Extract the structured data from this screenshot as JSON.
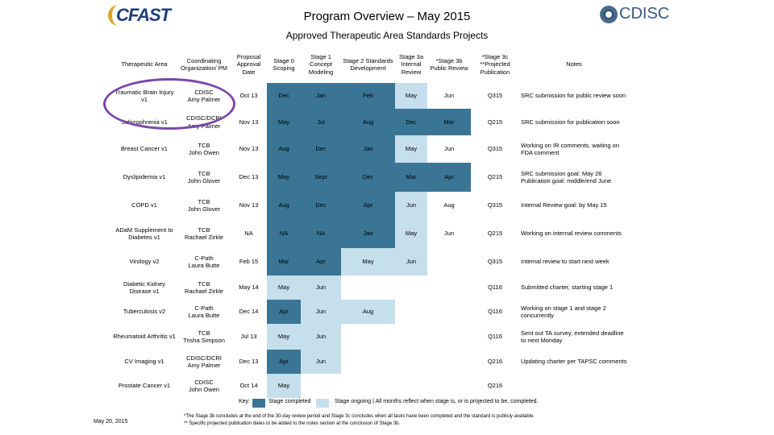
{
  "header": {
    "title": "Program Overview – May 2015",
    "subtitle": "Approved Therapeutic Area Standards Projects",
    "logo_left": "CFAST",
    "logo_right": "CDISC"
  },
  "colors": {
    "dark": "#3a7595",
    "light": "#c5dfec",
    "circle": "#7b47a8"
  },
  "table": {
    "columns": [
      "Therapeutic Area",
      "Coordinating Organization/ PM",
      "Proposal Approval Date",
      "Stage 0 Scoping",
      "Stage 1 Concept Modeling",
      "Stage 2 Standards Development",
      "Stage 3a Internal Review",
      "*Stage 3b Public Review",
      "*Stage 3c **Projected Publication",
      "Notes"
    ],
    "rows": [
      {
        "ta": "Traumatic Brain Injury v1",
        "org": "CDISC",
        "pm": "Amy Palmer",
        "date": "Oct 13",
        "s0": "Dec",
        "s1": "Jan",
        "s2": "Feb",
        "s3a": "May",
        "s3b": "Jun",
        "s3c": "Q315",
        "notes": "SRC submission for public review soon",
        "c": [
          "dk",
          "dk",
          "dk",
          "lg",
          "",
          ""
        ]
      },
      {
        "ta": "Schizophrenia v1",
        "org": "CDISC/DCRI",
        "pm": "Amy Palmer",
        "date": "Nov 13",
        "s0": "May",
        "s1": "Jul",
        "s2": "Aug",
        "s3a": "Dec",
        "s3b": "Mar",
        "s3c": "Q215",
        "notes": "SRC submission for publication soon",
        "c": [
          "dk",
          "dk",
          "dk",
          "dk",
          "dk",
          ""
        ]
      },
      {
        "ta": "Breast Cancer v1",
        "org": "TCB",
        "pm": "John Owen",
        "date": "Nov 13",
        "s0": "Aug",
        "s1": "Dec",
        "s2": "Jan",
        "s3a": "May",
        "s3b": "Jun",
        "s3c": "Q315",
        "notes": "Working on IR comments, waiting on FDA comment",
        "c": [
          "dk",
          "dk",
          "dk",
          "lg",
          "",
          ""
        ]
      },
      {
        "ta": "Dyslipidemia v1",
        "org": "TCB",
        "pm": "John Glover",
        "date": "Dec 13",
        "s0": "May",
        "s1": "Sept",
        "s2": "Dec",
        "s3a": "Mar",
        "s3b": "Apr",
        "s3c": "Q215",
        "notes": "SRC submission goal: May 26 Publication goal: middle/end June",
        "c": [
          "dk",
          "dk",
          "dk",
          "dk",
          "dk",
          ""
        ]
      },
      {
        "ta": "COPD v1",
        "org": "TCB",
        "pm": "John Glover",
        "date": "Nov 13",
        "s0": "Aug",
        "s1": "Dec",
        "s2": "Apr",
        "s3a": "Jun",
        "s3b": "Aug",
        "s3c": "Q315",
        "notes": "Internal Review goal: by May 15",
        "c": [
          "dk",
          "dk",
          "dk",
          "lg",
          "",
          ""
        ]
      },
      {
        "ta": "ADaM Supplement to Diabetes v1",
        "org": "TCB",
        "pm": "Rachael Zirkle",
        "date": "NA",
        "s0": "NA",
        "s1": "NA",
        "s2": "Jan",
        "s3a": "May",
        "s3b": "Jun",
        "s3c": "Q215",
        "notes": "Working on internal review comments",
        "c": [
          "dk",
          "dk",
          "dk",
          "lg",
          "",
          ""
        ]
      },
      {
        "ta": "Virology v2",
        "org": "C-Path",
        "pm": "Laura Butte",
        "date": "Feb 15",
        "s0": "Mar",
        "s1": "Apr",
        "s2": "May",
        "s3a": "Jun",
        "s3b": "",
        "s3c": "Q315",
        "notes": "Internal review to start next week",
        "c": [
          "dk",
          "dk",
          "lg",
          "lg",
          "",
          ""
        ]
      },
      {
        "ta": "Diabetic Kidney Disease v1",
        "org": "TCB",
        "pm": "Rachael Zirkle",
        "date": "May 14",
        "s0": "May",
        "s1": "Jun",
        "s2": "",
        "s3a": "",
        "s3b": "",
        "s3c": "Q116",
        "notes": "Submitted charter, starting stage 1",
        "c": [
          "lg",
          "lg",
          "",
          "",
          "",
          ""
        ]
      },
      {
        "ta": "Tuberculosis v2",
        "org": "C-Path",
        "pm": "Laura Butte",
        "date": "Dec 14",
        "s0": "Apr",
        "s1": "Jun",
        "s2": "Aug",
        "s3a": "",
        "s3b": "",
        "s3c": "Q116",
        "notes": "Working on stage 1 and stage 2 concurrently",
        "c": [
          "dk",
          "lg",
          "lg",
          "",
          "",
          ""
        ]
      },
      {
        "ta": "Rheumatoid Arthritis v1",
        "org": "TCB",
        "pm": "Trisha Simpson",
        "date": "Jul 13",
        "s0": "May",
        "s1": "Jun",
        "s2": "",
        "s3a": "",
        "s3b": "",
        "s3c": "Q116",
        "notes": "Sent out TA survey, extended deadline to next Monday",
        "c": [
          "lg",
          "lg",
          "",
          "",
          "",
          ""
        ]
      },
      {
        "ta": "CV Imaging v1",
        "org": "CDISC/DCRI",
        "pm": "Amy Palmer",
        "date": "Dec 13",
        "s0": "Apr",
        "s1": "Jun",
        "s2": "",
        "s3a": "",
        "s3b": "",
        "s3c": "Q216",
        "notes": "Updating charter per TAPSC comments",
        "c": [
          "dk",
          "lg",
          "",
          "",
          "",
          ""
        ]
      },
      {
        "ta": "Prostate Cancer v1",
        "org": "CDISC",
        "pm": "John Owen",
        "date": "Oct 14",
        "s0": "May",
        "s1": "",
        "s2": "",
        "s3a": "",
        "s3b": "",
        "s3c": "Q216",
        "notes": "",
        "c": [
          "lg",
          "",
          "",
          "",
          "",
          ""
        ]
      }
    ]
  },
  "legend": {
    "key_label": "Key:",
    "completed": "Stage completed",
    "ongoing": "Stage ongoing | All months reflect when stage is, or is projected to be, completed."
  },
  "footer": {
    "date": "May 20, 2015",
    "note1": "*The Stage 3b concludes at the end of the 30-day review period and Stage 3c concludes when all tasks have been completed and the standard is publicly available.",
    "note2": "** Specific projected publication dates to be added to the notes section at the conclusion of Stage 3b."
  }
}
